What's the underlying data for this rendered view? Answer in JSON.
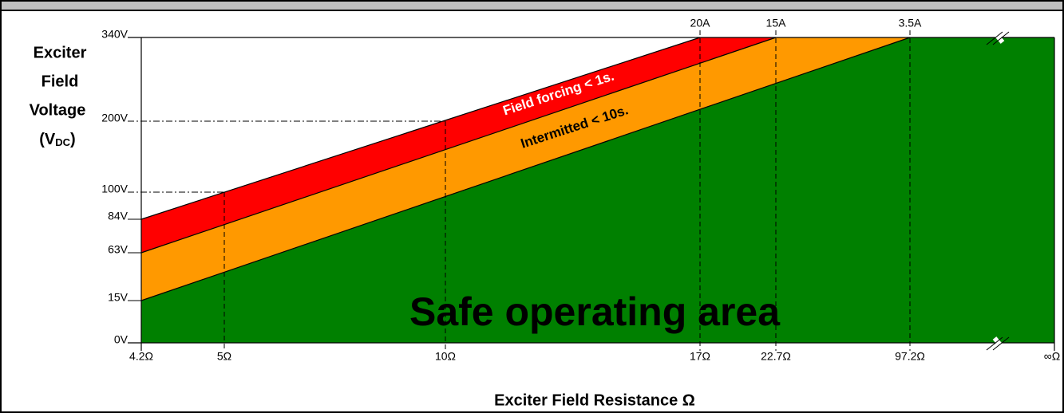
{
  "y_axis": {
    "label_lines": [
      "Exciter",
      "Field",
      "Voltage"
    ],
    "unit_open": "(V",
    "unit_sub": "DC",
    "unit_close": ")",
    "ticks": [
      "340V",
      "200V",
      "100V",
      "84V",
      "63V",
      "15V",
      "0V"
    ]
  },
  "x_axis": {
    "label": "Exciter Field Resistance  Ω",
    "ticks": [
      "4.2Ω",
      "5Ω",
      "10Ω",
      "17Ω",
      "22.7Ω",
      "97.2Ω",
      "∞Ω"
    ]
  },
  "current_labels": [
    "20A",
    "15A",
    "3.5A"
  ],
  "regions": {
    "red": "Field forcing < 1s.",
    "orange": "Intermitted < 10s.",
    "green": "Safe operating area"
  }
}
